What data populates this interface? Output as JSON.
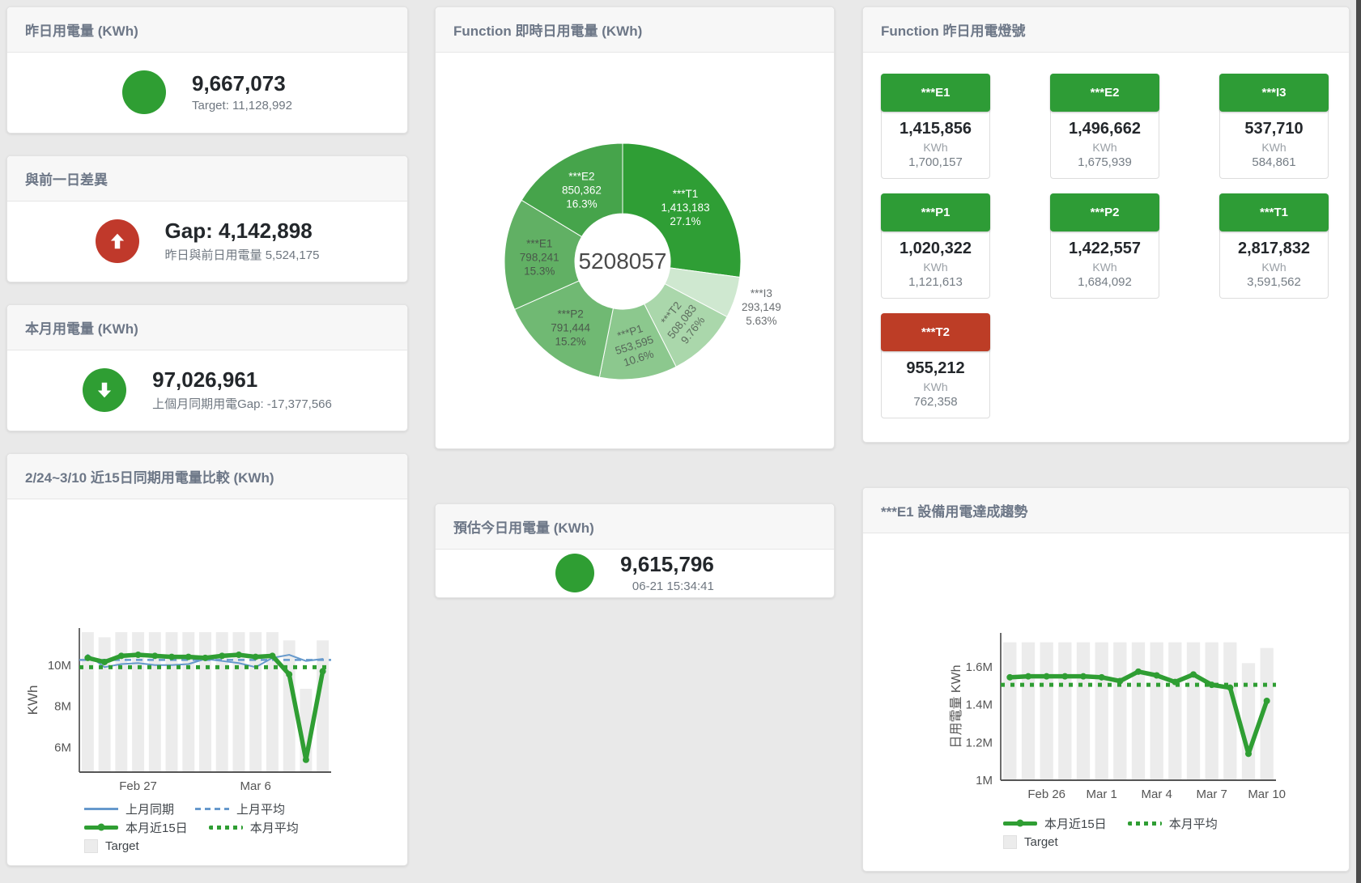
{
  "page": {
    "background": "#e9e9e9",
    "scrollbar_color": "#494949"
  },
  "colors": {
    "green": "#2f9e33",
    "red": "#c0392b",
    "blue": "#6699cc",
    "bar_gray": "#ececec"
  },
  "cards": {
    "yesterday": {
      "title": "昨日用電量 (KWh)",
      "value": "9,667,073",
      "subtitle": "Target: 11,128,992",
      "icon": "circle",
      "icon_color": "#2f9e33"
    },
    "day_gap": {
      "title": "與前一日差異",
      "value": "Gap: 4,142,898",
      "subtitle": "昨日與前日用電量 5,524,175",
      "icon": "arrow-up",
      "icon_color": "#c0392b"
    },
    "month": {
      "title": "本月用電量 (KWh)",
      "value": "97,026,961",
      "subtitle": "上個月同期用電Gap: -17,377,566",
      "icon": "arrow-down",
      "icon_color": "#2f9e33"
    },
    "realtime_donut": {
      "title": "Function 即時日用電量 (KWh)"
    },
    "estimate": {
      "title": "預估今日用電量 (KWh)",
      "value": "9,615,796",
      "subtitle": "06-21 15:34:41",
      "icon": "circle",
      "icon_color": "#2f9e33"
    },
    "signals": {
      "title": "Function 昨日用電燈號",
      "unit_label": "KWh",
      "tiles": [
        {
          "label": "***E1",
          "value": "1,415,856",
          "target": "1,700,157",
          "color": "#2e9c36"
        },
        {
          "label": "***E2",
          "value": "1,496,662",
          "target": "1,675,939",
          "color": "#2e9c36"
        },
        {
          "label": "***I3",
          "value": "537,710",
          "target": "584,861",
          "color": "#2e9c36"
        },
        {
          "label": "***P1",
          "value": "1,020,322",
          "target": "1,121,613",
          "color": "#2e9c36"
        },
        {
          "label": "***P2",
          "value": "1,422,557",
          "target": "1,684,092",
          "color": "#2e9c36"
        },
        {
          "label": "***T1",
          "value": "2,817,832",
          "target": "3,591,562",
          "color": "#2e9c36"
        },
        {
          "label": "***T2",
          "value": "955,212",
          "target": "762,358",
          "color": "#bd3d26"
        }
      ]
    },
    "compare": {
      "title": "2/24~3/10 近15日同期用電量比較 (KWh)"
    },
    "trend": {
      "title": "***E1 設備用電達成趨勢"
    }
  },
  "chart_data": [
    {
      "id": "donut",
      "type": "pie",
      "title": "Function 即時日用電量 (KWh)",
      "center_total": "5208057",
      "slices": [
        {
          "name": "***T1",
          "value": 1413183,
          "pct": "27.1%",
          "color": "#2f9e35",
          "text_color": "#ffffff",
          "label_rotation": 0,
          "label_outside": false
        },
        {
          "name": "***I3",
          "value": 293149,
          "pct": "5.63%",
          "color": "#cfe8d0",
          "text_color": "#6b6f72",
          "label_rotation": 0,
          "label_outside": true
        },
        {
          "name": "***T2",
          "value": 508083,
          "pct": "9.76%",
          "color": "#aad7ab",
          "text_color": "#5d6e5e",
          "label_rotation": -52,
          "label_outside": false
        },
        {
          "name": "***P1",
          "value": 553595,
          "pct": "10.6%",
          "color": "#8cc88e",
          "text_color": "#566759",
          "label_rotation": -18,
          "label_outside": false
        },
        {
          "name": "***P2",
          "value": 791444,
          "pct": "15.2%",
          "color": "#70b973",
          "text_color": "#4b5a4c",
          "label_rotation": 0,
          "label_outside": false
        },
        {
          "name": "***E1",
          "value": 798241,
          "pct": "15.3%",
          "color": "#61b064",
          "text_color": "#49584a",
          "label_rotation": 0,
          "label_outside": false
        },
        {
          "name": "***E2",
          "value": 850362,
          "pct": "16.3%",
          "color": "#46a44b",
          "text_color": "#ffffff",
          "label_rotation": 0,
          "label_outside": false
        }
      ]
    },
    {
      "id": "compare",
      "type": "line",
      "title": "2/24~3/10 近15日同期用電量比較 (KWh)",
      "xlabel": "",
      "ylabel": "KWh",
      "ylim": [
        4800000,
        11800000
      ],
      "yticks": [
        {
          "value": 6000000,
          "label": "6M"
        },
        {
          "value": 8000000,
          "label": "8M"
        },
        {
          "value": 10000000,
          "label": "10M"
        }
      ],
      "x_count": 15,
      "xticks": [
        {
          "index": 3,
          "label": "Feb 27"
        },
        {
          "index": 10,
          "label": "Mar 6"
        }
      ],
      "bar_series_name": "Target",
      "bar_color": "#ececec",
      "target_bars": [
        11600000,
        11350000,
        11600000,
        11600000,
        11600000,
        11600000,
        11600000,
        11600000,
        11600000,
        11600000,
        11600000,
        11600000,
        11200000,
        8850000,
        11200000
      ],
      "series": [
        {
          "name": "上月同期",
          "style": "solid-thin",
          "color": "#6699cc",
          "values": [
            10500000,
            9900000,
            10050000,
            10100000,
            10000000,
            10000000,
            10050000,
            10300000,
            10200000,
            10100000,
            9900000,
            10350000,
            10500000,
            10200000,
            10300000
          ]
        },
        {
          "name": "上月平均",
          "style": "dashed",
          "color": "#6699cc",
          "values": 10250000
        },
        {
          "name": "本月近15日",
          "style": "solid-thick",
          "color": "#2f9e33",
          "values": [
            10350000,
            10150000,
            10450000,
            10500000,
            10450000,
            10400000,
            10400000,
            10350000,
            10450000,
            10500000,
            10400000,
            10450000,
            9550000,
            5400000,
            9700000
          ]
        },
        {
          "name": "本月平均",
          "style": "dotted",
          "color": "#2f9e33",
          "values": 9900000
        }
      ],
      "legend_rows": [
        [
          "上月同期",
          "上月平均"
        ],
        [
          "本月近15日",
          "本月平均"
        ],
        [
          "Target"
        ]
      ]
    },
    {
      "id": "trend",
      "type": "line",
      "title": "***E1 設備用電達成趨勢",
      "xlabel": "",
      "ylabel": "日用電量 KWh",
      "ylim": [
        1000000,
        1780000
      ],
      "yticks": [
        {
          "value": 1000000,
          "label": "1M"
        },
        {
          "value": 1200000,
          "label": "1.2M"
        },
        {
          "value": 1400000,
          "label": "1.4M"
        },
        {
          "value": 1600000,
          "label": "1.6M"
        }
      ],
      "x_count": 15,
      "xticks": [
        {
          "index": 2,
          "label": "Feb 26"
        },
        {
          "index": 5,
          "label": "Mar 1"
        },
        {
          "index": 8,
          "label": "Mar 4"
        },
        {
          "index": 11,
          "label": "Mar 7"
        },
        {
          "index": 14,
          "label": "Mar 10"
        }
      ],
      "bar_series_name": "Target",
      "bar_color": "#ececec",
      "target_bars": [
        1730000,
        1730000,
        1730000,
        1730000,
        1730000,
        1730000,
        1730000,
        1730000,
        1730000,
        1730000,
        1730000,
        1730000,
        1730000,
        1620000,
        1700000
      ],
      "series": [
        {
          "name": "本月近15日",
          "style": "solid-thick",
          "color": "#2f9e33",
          "values": [
            1545000,
            1550000,
            1550000,
            1550000,
            1550000,
            1545000,
            1525000,
            1575000,
            1555000,
            1520000,
            1560000,
            1505000,
            1490000,
            1140000,
            1420000
          ]
        },
        {
          "name": "本月平均",
          "style": "dotted",
          "color": "#2f9e33",
          "values": 1505000
        }
      ],
      "legend_rows": [
        [
          "本月近15日",
          "本月平均"
        ],
        [
          "Target"
        ]
      ]
    }
  ]
}
